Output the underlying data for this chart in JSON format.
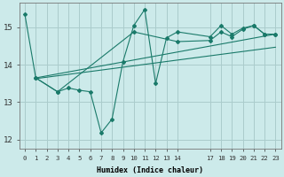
{
  "xlabel": "Humidex (Indice chaleur)",
  "bg_color": "#cceaea",
  "grid_color": "#aacccc",
  "line_color": "#1a7a6a",
  "ylim": [
    11.75,
    15.65
  ],
  "xlim": [
    -0.5,
    23.5
  ],
  "ytick_positions": [
    12,
    13,
    14,
    15
  ],
  "xtick_positions": [
    0,
    1,
    2,
    3,
    4,
    5,
    6,
    7,
    8,
    9,
    10,
    11,
    12,
    13,
    14,
    17,
    18,
    19,
    20,
    21,
    22,
    23
  ],
  "xtick_labels": [
    "0",
    "1",
    "2",
    "3",
    "4",
    "5",
    "6",
    "7",
    "8",
    "9",
    "10",
    "11",
    "12",
    "13",
    "14",
    "17",
    "18",
    "19",
    "20",
    "21",
    "22",
    "23"
  ],
  "line1_x": [
    0,
    1,
    3,
    4,
    5,
    6,
    7,
    8,
    9,
    10,
    11,
    12,
    13,
    14,
    17,
    18,
    19,
    20,
    21,
    22,
    23
  ],
  "line1_y": [
    15.35,
    13.65,
    13.28,
    13.38,
    13.32,
    13.28,
    12.18,
    12.55,
    14.08,
    15.05,
    15.48,
    13.5,
    14.72,
    14.88,
    14.75,
    15.05,
    14.82,
    14.98,
    15.05,
    14.82,
    14.82
  ],
  "line2_x": [
    1,
    3,
    10,
    14,
    17,
    18,
    19,
    20,
    21,
    22,
    23
  ],
  "line2_y": [
    13.65,
    13.28,
    14.88,
    14.62,
    14.65,
    14.88,
    14.75,
    14.95,
    15.05,
    14.82,
    14.82
  ],
  "line3_x": [
    1,
    23
  ],
  "line3_y": [
    13.65,
    14.82
  ],
  "line4_x": [
    1,
    23
  ],
  "line4_y": [
    13.65,
    14.82
  ]
}
